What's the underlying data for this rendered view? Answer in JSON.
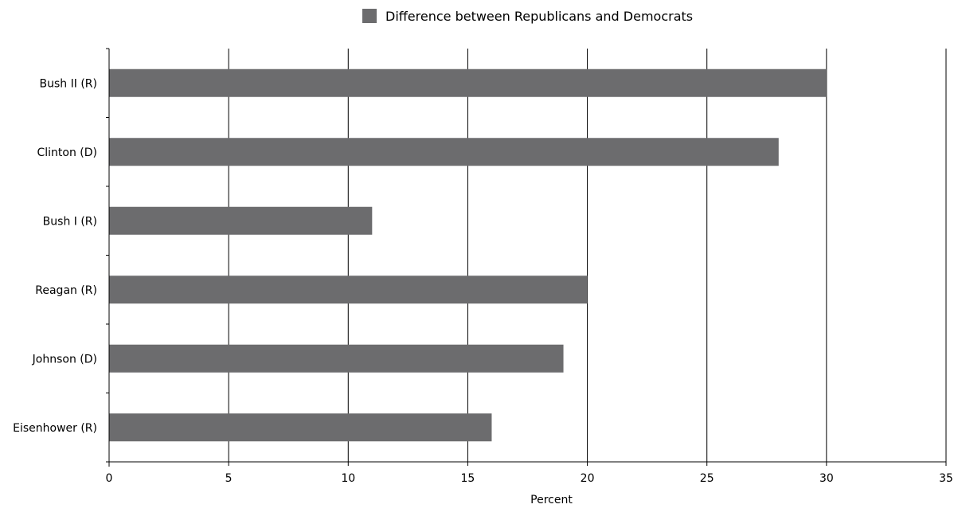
{
  "chart_data": {
    "type": "bar",
    "orientation": "horizontal",
    "categories": [
      "Bush II (R)",
      "Clinton (D)",
      "Bush I (R)",
      "Reagan (R)",
      "Johnson (D)",
      "Eisenhower (R)"
    ],
    "series": [
      {
        "name": "Difference between Republicans and Democrats",
        "values": [
          30,
          28,
          11,
          20,
          19,
          16
        ]
      }
    ],
    "xlabel": "Percent",
    "ylabel": "",
    "xlim": [
      0,
      35
    ],
    "xticks": [
      0,
      5,
      10,
      15,
      20,
      25,
      30,
      35
    ],
    "grid": "vertical",
    "legend_position": "top-center",
    "bar_color": "#6c6c6e"
  }
}
